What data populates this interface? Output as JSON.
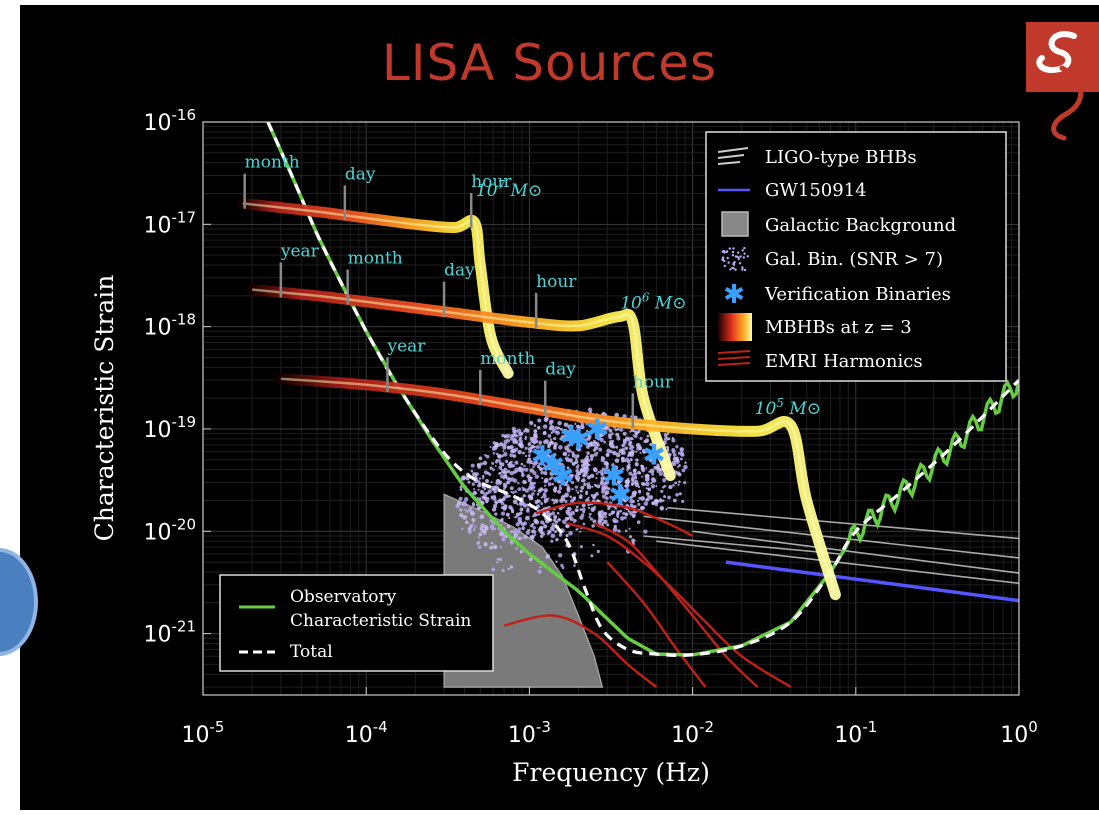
{
  "title": "LISA Sources",
  "chart_data": {
    "type": "line",
    "title": "LISA Sources",
    "xlabel": "Frequency (Hz)",
    "ylabel": "Characteristic Strain",
    "x_scale": "log",
    "y_scale": "log",
    "xlim": [
      1e-05,
      1
    ],
    "ylim": [
      3e-22,
      1e-16
    ],
    "x_ticks": [
      {
        "base": "10",
        "exp": "-5",
        "value": 1e-05
      },
      {
        "base": "10",
        "exp": "-4",
        "value": 0.0001
      },
      {
        "base": "10",
        "exp": "-3",
        "value": 0.001
      },
      {
        "base": "10",
        "exp": "-2",
        "value": 0.01
      },
      {
        "base": "10",
        "exp": "-1",
        "value": 0.1
      },
      {
        "base": "10",
        "exp": "0",
        "value": 1
      }
    ],
    "y_ticks": [
      {
        "base": "10",
        "exp": "-16",
        "value": 1e-16
      },
      {
        "base": "10",
        "exp": "-17",
        "value": 1e-17
      },
      {
        "base": "10",
        "exp": "-18",
        "value": 1e-18
      },
      {
        "base": "10",
        "exp": "-19",
        "value": 1e-19
      },
      {
        "base": "10",
        "exp": "-20",
        "value": 1e-20
      },
      {
        "base": "10",
        "exp": "-21",
        "value": 1e-21
      }
    ],
    "grid": true,
    "legend_top_right": [
      {
        "label": "LIGO-type BHBs",
        "color": "#cccccc"
      },
      {
        "label": "GW150914",
        "color": "#5555ff"
      },
      {
        "label": "Galactic Background",
        "color": "#888888"
      },
      {
        "label": "Gal. Bin. (SNR > 7)",
        "color": "#b8a8f0"
      },
      {
        "label": "Verification Binaries",
        "color": "#3aa0ff"
      },
      {
        "label": "MBHBs at z = 3",
        "color": "#ffdd33"
      },
      {
        "label": "EMRI Harmonics",
        "color": "#d03020"
      }
    ],
    "legend_bottom_left": [
      {
        "label": "Observatory Characteristic Strain",
        "label_lines": [
          "Observatory",
          "Characteristic Strain"
        ],
        "color": "#66cc44"
      },
      {
        "label": "Total",
        "color": "#ffffff"
      }
    ],
    "mbhb_tracks": [
      {
        "mass": "10^7 M⊙",
        "mass_base": "10",
        "mass_exp": "7",
        "points": [
          [
            1.75e-05,
            1.6e-17
          ],
          [
            5e-05,
            1.33e-17
          ],
          [
            0.0001,
            1.15e-17
          ],
          [
            0.0002,
            1e-17
          ],
          [
            0.00035,
            9.3e-18
          ],
          [
            0.00046,
            1.05e-17
          ],
          [
            0.0005,
            4e-18
          ],
          [
            0.00058,
            8e-19
          ],
          [
            0.00074,
            3.5e-19
          ]
        ],
        "annotations": [
          {
            "label": "month",
            "f": 1.8e-05
          },
          {
            "label": "day",
            "f": 7.4e-05
          },
          {
            "label": "hour",
            "f": 0.00044
          }
        ]
      },
      {
        "mass": "10^6 M⊙",
        "mass_base": "10",
        "mass_exp": "6",
        "points": [
          [
            2e-05,
            2.3e-18
          ],
          [
            5e-05,
            2e-18
          ],
          [
            0.0001,
            1.75e-18
          ],
          [
            0.0003,
            1.4e-18
          ],
          [
            0.001,
            1.1e-18
          ],
          [
            0.002,
            1.02e-18
          ],
          [
            0.0035,
            1.25e-18
          ],
          [
            0.0043,
            1.1e-18
          ],
          [
            0.005,
            2e-19
          ],
          [
            0.0073,
            3.5e-20
          ]
        ],
        "annotations": [
          {
            "label": "year",
            "f": 3e-05
          },
          {
            "label": "month",
            "f": 7.7e-05
          },
          {
            "label": "day",
            "f": 0.0003
          },
          {
            "label": "hour",
            "f": 0.0011
          }
        ]
      },
      {
        "mass": "10^5 M⊙",
        "mass_base": "10",
        "mass_exp": "5",
        "points": [
          [
            3e-05,
            3.1e-19
          ],
          [
            0.0001,
            2.7e-19
          ],
          [
            0.0003,
            2.2e-19
          ],
          [
            0.001,
            1.6e-19
          ],
          [
            0.003,
            1.2e-19
          ],
          [
            0.01,
            1e-19
          ],
          [
            0.025,
            9.5e-20
          ],
          [
            0.04,
            1.08e-19
          ],
          [
            0.05,
            2e-20
          ],
          [
            0.075,
            2.4e-21
          ]
        ],
        "annotations": [
          {
            "label": "year",
            "f": 0.000135
          },
          {
            "label": "month",
            "f": 0.0005
          },
          {
            "label": "day",
            "f": 0.00125
          },
          {
            "label": "hour",
            "f": 0.0043
          }
        ]
      }
    ],
    "observatory_strain": [
      [
        2.5e-05,
        1e-16
      ],
      [
        3.5e-05,
        3e-17
      ],
      [
        5e-05,
        8e-18
      ],
      [
        7e-05,
        2.7e-18
      ],
      [
        0.0001,
        9e-19
      ],
      [
        0.00015,
        2.9e-19
      ],
      [
        0.00025,
        8e-20
      ],
      [
        0.0004,
        2.7e-20
      ],
      [
        0.0007,
        1e-20
      ],
      [
        0.001,
        6e-21
      ],
      [
        0.002,
        2.6e-21
      ],
      [
        0.004,
        9e-22
      ],
      [
        0.006,
        6.3e-22
      ],
      [
        0.01,
        6.2e-22
      ],
      [
        0.02,
        7.6e-22
      ],
      [
        0.04,
        1.3e-21
      ],
      [
        0.07,
        4e-21
      ],
      [
        0.1,
        1e-20
      ],
      [
        0.2,
        2.6e-20
      ],
      [
        0.4,
        7e-20
      ],
      [
        1,
        3e-19
      ]
    ],
    "total": [
      [
        2.5e-05,
        1e-16
      ],
      [
        3.5e-05,
        3e-17
      ],
      [
        5e-05,
        8e-18
      ],
      [
        7e-05,
        2.7e-18
      ],
      [
        0.0001,
        9e-19
      ],
      [
        0.00015,
        2.9e-19
      ],
      [
        0.00025,
        8.5e-20
      ],
      [
        0.00035,
        4.5e-20
      ],
      [
        0.0005,
        3e-20
      ],
      [
        0.0008,
        2.2e-20
      ],
      [
        0.0012,
        1.5e-20
      ],
      [
        0.0017,
        8e-21
      ],
      [
        0.0022,
        2.7e-21
      ],
      [
        0.0028,
        1.1e-21
      ],
      [
        0.004,
        7e-22
      ],
      [
        0.006,
        6.3e-22
      ],
      [
        0.01,
        6.2e-22
      ],
      [
        0.02,
        7.6e-22
      ],
      [
        0.04,
        1.3e-21
      ],
      [
        0.07,
        4e-21
      ],
      [
        0.1,
        1e-20
      ],
      [
        0.2,
        2.6e-20
      ],
      [
        0.4,
        7e-20
      ],
      [
        1,
        3e-19
      ]
    ],
    "galactic_background": [
      [
        0.0003,
        2.3e-20
      ],
      [
        0.0005,
        1.6e-20
      ],
      [
        0.0008,
        1.1e-20
      ],
      [
        0.0012,
        7e-21
      ],
      [
        0.0016,
        3.6e-21
      ],
      [
        0.002,
        1.5e-21
      ],
      [
        0.0025,
        6e-22
      ],
      [
        0.0028,
        3e-22
      ]
    ],
    "gw150914": [
      [
        0.016,
        5e-21
      ],
      [
        1,
        2.1e-21
      ]
    ],
    "ligo_bhbs": [
      [
        [
          0.007,
          1.7e-20
        ],
        [
          1,
          8.5e-21
        ]
      ],
      [
        [
          0.005,
          1.4e-20
        ],
        [
          1,
          5.5e-21
        ]
      ],
      [
        [
          0.01,
          1e-20
        ],
        [
          1,
          3.9e-21
        ]
      ],
      [
        [
          0.005,
          9e-21
        ],
        [
          0.08,
          6e-21
        ]
      ],
      [
        [
          0.006,
          8e-21
        ],
        [
          1,
          3.1e-21
        ]
      ]
    ],
    "emri_harmonics": [
      [
        [
          0.0011,
          1.5e-20
        ],
        [
          0.002,
          1.9e-20
        ],
        [
          0.004,
          1.7e-20
        ],
        [
          0.007,
          1.2e-20
        ],
        [
          0.01,
          9e-21
        ]
      ],
      [
        [
          0.0017,
          1.2e-20
        ],
        [
          0.003,
          9e-21
        ],
        [
          0.005,
          5e-21
        ],
        [
          0.008,
          2.5e-21
        ],
        [
          0.012,
          1.3e-21
        ],
        [
          0.02,
          6e-22
        ],
        [
          0.04,
          3e-22
        ]
      ],
      [
        [
          0.0025,
          1.2e-20
        ],
        [
          0.004,
          8e-21
        ],
        [
          0.006,
          4e-21
        ],
        [
          0.01,
          1.5e-21
        ],
        [
          0.016,
          6e-22
        ],
        [
          0.025,
          3e-22
        ]
      ],
      [
        [
          0.003,
          5e-21
        ],
        [
          0.005,
          2e-21
        ],
        [
          0.008,
          7e-22
        ],
        [
          0.012,
          3e-22
        ]
      ],
      [
        [
          0.0007,
          1.2e-21
        ],
        [
          0.0014,
          1.5e-21
        ],
        [
          0.0025,
          1e-21
        ],
        [
          0.004,
          5e-22
        ],
        [
          0.006,
          3e-22
        ]
      ]
    ],
    "verification_binaries": [
      [
        0.0012,
        5.5e-20
      ],
      [
        0.0014,
        4.5e-20
      ],
      [
        0.0016,
        3.5e-20
      ],
      [
        0.0018,
        8.5e-20
      ],
      [
        0.002,
        8e-20
      ],
      [
        0.0026,
        1e-19
      ],
      [
        0.0033,
        3.5e-20
      ],
      [
        0.0036,
        2.3e-20
      ],
      [
        0.0058,
        5.6e-20
      ]
    ],
    "gal_bin_cloud": {
      "f_range": [
        0.0005,
        0.01
      ],
      "h_range": [
        1.5e-21,
        4e-19
      ]
    }
  }
}
